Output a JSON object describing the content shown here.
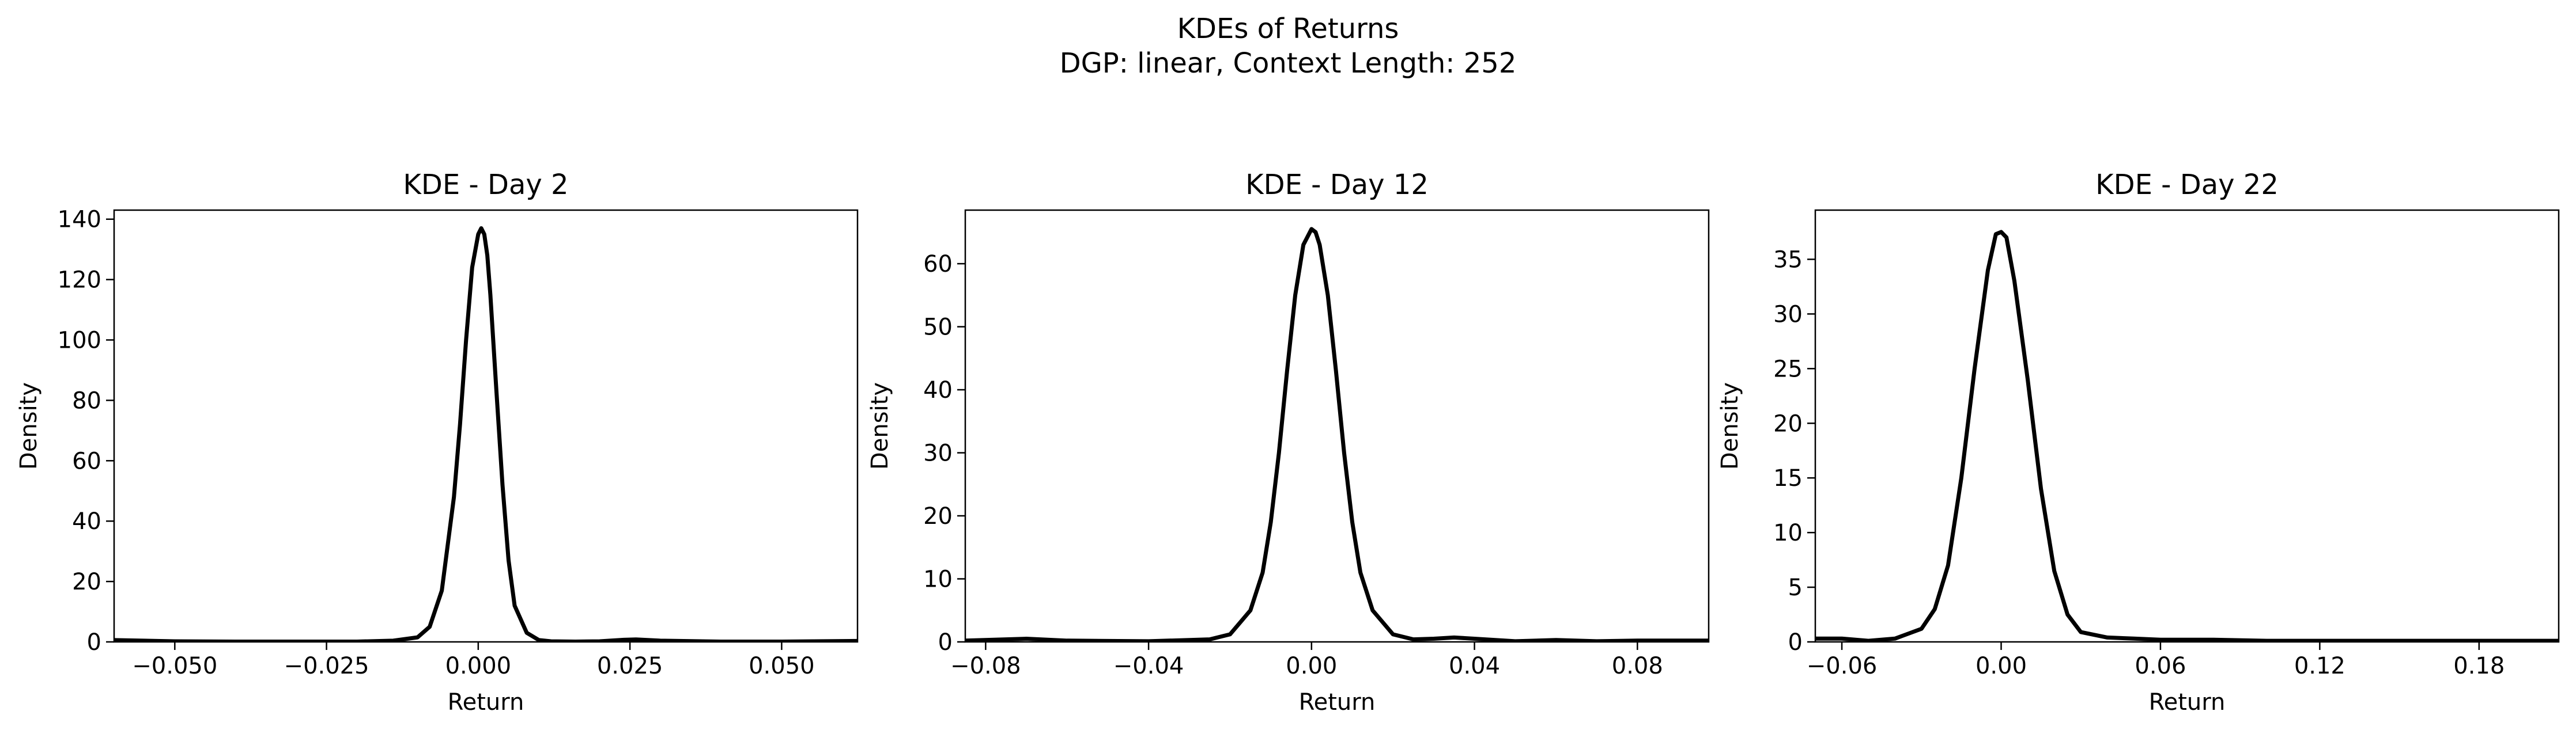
{
  "figure": {
    "title": "KDEs of Returns",
    "subtitle": "DGP: linear, Context Length: 252"
  },
  "chart_data": [
    {
      "type": "line",
      "title": "KDE - Day 2",
      "xlabel": "Return",
      "ylabel": "Density",
      "xlim": [
        -0.06,
        0.0625
      ],
      "ylim": [
        0,
        143
      ],
      "xticks": [
        -0.05,
        -0.025,
        0.0,
        0.025,
        0.05
      ],
      "xtick_labels": [
        "−0.050",
        "−0.025",
        "0.000",
        "0.025",
        "0.050"
      ],
      "yticks": [
        0,
        20,
        40,
        60,
        80,
        100,
        120,
        140
      ],
      "ytick_labels": [
        "0",
        "20",
        "40",
        "60",
        "80",
        "100",
        "120",
        "140"
      ],
      "grid": false,
      "series": [
        {
          "color": "#000000",
          "x": [
            -0.06,
            -0.05,
            -0.04,
            -0.03,
            -0.02,
            -0.014,
            -0.01,
            -0.008,
            -0.006,
            -0.004,
            -0.003,
            -0.002,
            -0.001,
            0.0,
            0.0005,
            0.001,
            0.0015,
            0.002,
            0.003,
            0.004,
            0.005,
            0.006,
            0.008,
            0.01,
            0.012,
            0.016,
            0.02,
            0.024,
            0.026,
            0.03,
            0.04,
            0.05,
            0.0625
          ],
          "y": [
            0.6,
            0.2,
            0.1,
            0.1,
            0.1,
            0.4,
            1.5,
            5,
            17,
            48,
            72,
            100,
            124,
            135,
            137,
            135,
            128,
            115,
            83,
            52,
            27,
            12,
            3,
            0.6,
            0.2,
            0.1,
            0.2,
            0.7,
            0.8,
            0.4,
            0.1,
            0.1,
            0.3
          ]
        }
      ]
    },
    {
      "type": "line",
      "title": "KDE - Day 12",
      "xlabel": "Return",
      "ylabel": "Density",
      "xlim": [
        -0.085,
        0.0975
      ],
      "ylim": [
        0,
        68.5
      ],
      "xticks": [
        -0.08,
        -0.04,
        0.0,
        0.04,
        0.08
      ],
      "xtick_labels": [
        "−0.08",
        "−0.04",
        "0.00",
        "0.04",
        "0.08"
      ],
      "yticks": [
        0,
        10,
        20,
        30,
        40,
        50,
        60
      ],
      "ytick_labels": [
        "0",
        "10",
        "20",
        "30",
        "40",
        "50",
        "60"
      ],
      "grid": false,
      "series": [
        {
          "color": "#000000",
          "x": [
            -0.085,
            -0.07,
            -0.06,
            -0.04,
            -0.025,
            -0.02,
            -0.015,
            -0.012,
            -0.01,
            -0.008,
            -0.006,
            -0.004,
            -0.002,
            0.0,
            0.001,
            0.002,
            0.004,
            0.006,
            0.008,
            0.01,
            0.012,
            0.015,
            0.02,
            0.025,
            0.03,
            0.035,
            0.04,
            0.05,
            0.06,
            0.07,
            0.08,
            0.0975
          ],
          "y": [
            0.2,
            0.5,
            0.2,
            0.1,
            0.4,
            1.2,
            5,
            11,
            19,
            30,
            43,
            55,
            63,
            65.5,
            65,
            63,
            55,
            43,
            30,
            19,
            11,
            5,
            1.2,
            0.4,
            0.5,
            0.7,
            0.5,
            0.1,
            0.3,
            0.1,
            0.2,
            0.2
          ]
        }
      ]
    },
    {
      "type": "line",
      "title": "KDE - Day 22",
      "xlabel": "Return",
      "ylabel": "Density",
      "xlim": [
        -0.07,
        0.21
      ],
      "ylim": [
        0,
        39.5
      ],
      "xticks": [
        -0.06,
        0.0,
        0.06,
        0.12,
        0.18
      ],
      "xtick_labels": [
        "−0.06",
        "0.00",
        "0.06",
        "0.12",
        "0.18"
      ],
      "yticks": [
        0,
        5,
        10,
        15,
        20,
        25,
        30,
        35
      ],
      "ytick_labels": [
        "0",
        "5",
        "10",
        "15",
        "20",
        "25",
        "30",
        "35"
      ],
      "grid": false,
      "series": [
        {
          "color": "#000000",
          "x": [
            -0.07,
            -0.06,
            -0.05,
            -0.04,
            -0.03,
            -0.025,
            -0.02,
            -0.015,
            -0.01,
            -0.005,
            -0.002,
            0.0,
            0.002,
            0.005,
            0.01,
            0.015,
            0.02,
            0.025,
            0.03,
            0.04,
            0.05,
            0.06,
            0.08,
            0.1,
            0.12,
            0.14,
            0.16,
            0.18,
            0.21
          ],
          "y": [
            0.3,
            0.3,
            0.1,
            0.3,
            1.2,
            3,
            7,
            15,
            25,
            34,
            37.3,
            37.5,
            37,
            33,
            24,
            14,
            6.5,
            2.5,
            0.9,
            0.4,
            0.3,
            0.2,
            0.2,
            0.1,
            0.1,
            0.1,
            0.1,
            0.1,
            0.1
          ]
        }
      ]
    }
  ]
}
